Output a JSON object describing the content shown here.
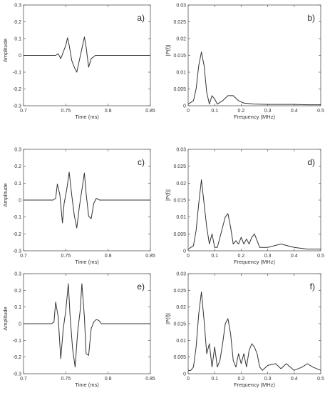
{
  "chart_data": [
    {
      "type": "line",
      "panel_label": "a)",
      "xlabel": "Time (ms)",
      "ylabel": "Amplitude",
      "xlim": [
        0.7,
        0.85
      ],
      "ylim": [
        -0.3,
        0.3
      ],
      "x_ticks": [
        "0.7",
        "0.75",
        "0.8",
        "0.85"
      ],
      "y_ticks": [
        "-0.3",
        "-0.2",
        "-0.1",
        "0",
        "0.1",
        "0.2",
        "0.3"
      ],
      "series": [
        {
          "x": [
            0.7,
            0.738,
            0.741,
            0.744,
            0.747,
            0.75,
            0.752,
            0.754,
            0.757,
            0.76,
            0.763,
            0.766,
            0.769,
            0.772,
            0.774,
            0.777,
            0.78,
            0.785,
            0.85
          ],
          "y": [
            0,
            0,
            0.01,
            -0.02,
            0.02,
            0.06,
            0.105,
            0.06,
            -0.03,
            -0.07,
            -0.1,
            -0.03,
            0.04,
            0.11,
            0.05,
            -0.07,
            -0.02,
            0,
            0
          ]
        }
      ]
    },
    {
      "type": "line",
      "panel_label": "b)",
      "xlabel": "Frequency (MHz)",
      "ylabel": "|P(f)|",
      "xlim": [
        0,
        0.5
      ],
      "ylim": [
        0,
        0.03
      ],
      "x_ticks": [
        "0",
        "0.1",
        "0.2",
        "0.3",
        "0.4",
        "0.5"
      ],
      "y_ticks": [
        "0",
        "0.005",
        "0.01",
        "0.015",
        "0.02",
        "0.025",
        "0.03"
      ],
      "series": [
        {
          "x": [
            0,
            0.01,
            0.02,
            0.03,
            0.04,
            0.05,
            0.06,
            0.07,
            0.08,
            0.09,
            0.1,
            0.11,
            0.13,
            0.15,
            0.17,
            0.19,
            0.21,
            0.25,
            0.3,
            0.35,
            0.4,
            0.45,
            0.5
          ],
          "y": [
            0.0005,
            0.001,
            0.0015,
            0.005,
            0.012,
            0.016,
            0.012,
            0.004,
            0.0005,
            0.003,
            0.002,
            0.0005,
            0.0015,
            0.003,
            0.003,
            0.0015,
            0.0008,
            0.0005,
            0.0004,
            0.0004,
            0.0004,
            0.0003,
            0.0003
          ]
        }
      ]
    },
    {
      "type": "line",
      "panel_label": "c)",
      "xlabel": "Time (ms)",
      "ylabel": "Amplitude",
      "xlim": [
        0.7,
        0.85
      ],
      "ylim": [
        -0.3,
        0.3
      ],
      "x_ticks": [
        "0.7",
        "0.75",
        "0.8",
        "0.85"
      ],
      "y_ticks": [
        "-0.3",
        "-0.2",
        "-0.1",
        "0",
        "0.1",
        "0.2",
        "0.3"
      ],
      "series": [
        {
          "x": [
            0.7,
            0.735,
            0.738,
            0.74,
            0.743,
            0.746,
            0.748,
            0.751,
            0.754,
            0.757,
            0.76,
            0.763,
            0.766,
            0.769,
            0.772,
            0.774,
            0.777,
            0.78,
            0.783,
            0.786,
            0.79,
            0.85
          ],
          "y": [
            0,
            0,
            0.01,
            0.095,
            0.03,
            -0.135,
            -0.02,
            0.06,
            0.165,
            0.03,
            -0.09,
            -0.165,
            -0.04,
            0.06,
            0.16,
            0.04,
            -0.095,
            -0.11,
            -0.02,
            0.01,
            0,
            0
          ]
        }
      ]
    },
    {
      "type": "line",
      "panel_label": "d)",
      "xlabel": "Frequency (MHz)",
      "ylabel": "|P(f)|",
      "xlim": [
        0,
        0.5
      ],
      "ylim": [
        0,
        0.03
      ],
      "x_ticks": [
        "0",
        "0.1",
        "0.2",
        "0.3",
        "0.4",
        "0.5"
      ],
      "y_ticks": [
        "0",
        "0.005",
        "0.01",
        "0.015",
        "0.02",
        "0.025",
        "0.03"
      ],
      "series": [
        {
          "x": [
            0,
            0.01,
            0.02,
            0.03,
            0.04,
            0.05,
            0.06,
            0.07,
            0.08,
            0.09,
            0.1,
            0.11,
            0.12,
            0.13,
            0.14,
            0.15,
            0.16,
            0.17,
            0.18,
            0.19,
            0.2,
            0.21,
            0.22,
            0.23,
            0.24,
            0.25,
            0.26,
            0.27,
            0.3,
            0.35,
            0.4,
            0.45,
            0.5
          ],
          "y": [
            0.0005,
            0.001,
            0.0015,
            0.006,
            0.014,
            0.021,
            0.014,
            0.007,
            0.002,
            0.005,
            0.001,
            0.001,
            0.004,
            0.007,
            0.01,
            0.011,
            0.007,
            0.002,
            0.003,
            0.002,
            0.004,
            0.002,
            0.0035,
            0.002,
            0.004,
            0.005,
            0.003,
            0.001,
            0.001,
            0.002,
            0.001,
            0.0005,
            0.0005
          ]
        }
      ]
    },
    {
      "type": "line",
      "panel_label": "e)",
      "xlabel": "Time (ms)",
      "ylabel": "Amplitude",
      "xlim": [
        0.7,
        0.85
      ],
      "ylim": [
        -0.3,
        0.3
      ],
      "x_ticks": [
        "0.7",
        "0.75",
        "0.8",
        "0.85"
      ],
      "y_ticks": [
        "-0.3",
        "-0.2",
        "-0.1",
        "0",
        "0.1",
        "0.2",
        "0.3"
      ],
      "series": [
        {
          "x": [
            0.7,
            0.733,
            0.736,
            0.738,
            0.741,
            0.744,
            0.747,
            0.75,
            0.753,
            0.755,
            0.758,
            0.761,
            0.764,
            0.767,
            0.769,
            0.772,
            0.774,
            0.777,
            0.78,
            0.783,
            0.786,
            0.789,
            0.792,
            0.85
          ],
          "y": [
            0,
            0,
            0.01,
            0.13,
            0.04,
            -0.21,
            -0.03,
            0.08,
            0.24,
            0.05,
            -0.15,
            -0.26,
            -0.05,
            0.08,
            0.24,
            0.04,
            -0.18,
            -0.19,
            -0.03,
            0.01,
            0.025,
            0.02,
            0,
            0
          ]
        }
      ]
    },
    {
      "type": "line",
      "panel_label": "f)",
      "xlabel": "Frequency (MHz)",
      "ylabel": "|P(f)|",
      "xlim": [
        0,
        0.5
      ],
      "ylim": [
        0,
        0.03
      ],
      "x_ticks": [
        "0",
        "0.1",
        "0.2",
        "0.3",
        "0.4",
        "0.5"
      ],
      "y_ticks": [
        "0",
        "0.005",
        "0.01",
        "0.015",
        "0.02",
        "0.025",
        "0.03"
      ],
      "series": [
        {
          "x": [
            0,
            0.01,
            0.02,
            0.03,
            0.04,
            0.05,
            0.06,
            0.07,
            0.08,
            0.09,
            0.1,
            0.11,
            0.12,
            0.13,
            0.14,
            0.15,
            0.16,
            0.17,
            0.18,
            0.19,
            0.2,
            0.21,
            0.22,
            0.23,
            0.24,
            0.25,
            0.26,
            0.27,
            0.28,
            0.3,
            0.33,
            0.35,
            0.37,
            0.4,
            0.43,
            0.45,
            0.47,
            0.5
          ],
          "y": [
            0.001,
            0.001,
            0.002,
            0.008,
            0.018,
            0.0245,
            0.016,
            0.006,
            0.009,
            0.002,
            0.008,
            0.002,
            0.004,
            0.009,
            0.015,
            0.0165,
            0.012,
            0.004,
            0.002,
            0.006,
            0.003,
            0.006,
            0.002,
            0.007,
            0.009,
            0.008,
            0.006,
            0.002,
            0.001,
            0.0025,
            0.003,
            0.0015,
            0.003,
            0.001,
            0.002,
            0.003,
            0.002,
            0.001
          ]
        }
      ]
    }
  ]
}
